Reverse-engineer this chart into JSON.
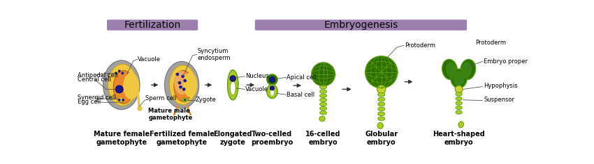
{
  "title_fertilization": "Fertilization",
  "title_embryogenesis": "Embryogenesis",
  "header_bg": "#9b7fad",
  "bg_color": "#ffffff",
  "stage_labels": [
    "Mature female\ngametophyte",
    "Fertilized female\ngametophyte",
    "Elongated\nzygote",
    "Two-celled\nproembryo",
    "16-celled\nembryo",
    "Globular\nembryo",
    "Heart-shaped\nembryo"
  ],
  "fertilization_labels": {
    "vacuole": "Vacuole",
    "central_cell": "Central cell",
    "antipodal_cell": "Antipodal cell",
    "synergid_cell": "Synergid cell",
    "egg_cell": "Egg cell",
    "sperm_cell": "Sperm cell",
    "mature_male": "Mature male\ngametophyte",
    "syncytium": "Syncytium\nendosperm",
    "zygote": "Zygote"
  },
  "embryo_labels": {
    "nucleus": "Nucleus",
    "vacuole": "Vacuole",
    "apical_cell": "Apical cell",
    "basal_cell": "Basal cell",
    "protoderm": "Protoderm",
    "embryo_proper": "Embryo proper",
    "hypophysis": "Hypophysis",
    "suspensor": "Suspensor"
  },
  "gray_outer": "#a0a0a0",
  "orange_inner": "#e8882a",
  "yellow_inner": "#f0c840",
  "dark_blue": "#1a1a8c",
  "light_green": "#aacc22",
  "dark_green": "#2d6e00",
  "med_green": "#5a9a10",
  "arrow_color": "#333333",
  "label_fontsize": 6.0,
  "stage_fontsize": 7.0
}
